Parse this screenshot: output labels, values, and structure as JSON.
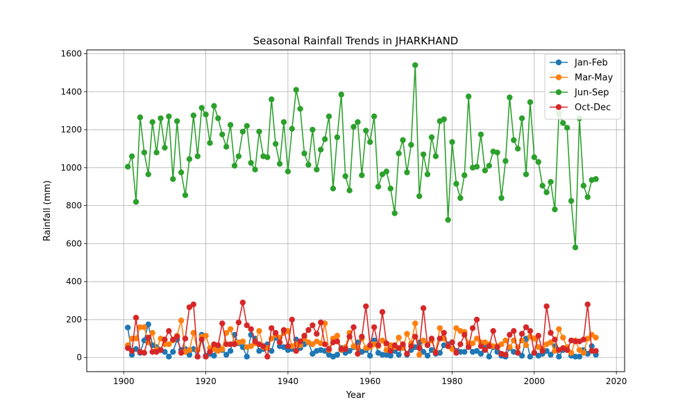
{
  "chart_data": {
    "type": "line",
    "title": "Seasonal Rainfall Trends in JHARKHAND",
    "xlabel": "Year",
    "ylabel": "Rainfall (mm)",
    "xlim": [
      1891,
      2022
    ],
    "ylim": [
      -74,
      1620
    ],
    "xticks": [
      1900,
      1920,
      1940,
      1960,
      1980,
      2000,
      2020
    ],
    "yticks": [
      0,
      200,
      400,
      600,
      800,
      1000,
      1200,
      1400,
      1600
    ],
    "grid": true,
    "legend_position": "top-right",
    "x": [
      1901,
      1902,
      1903,
      1904,
      1905,
      1906,
      1907,
      1908,
      1909,
      1910,
      1911,
      1912,
      1913,
      1914,
      1915,
      1916,
      1917,
      1918,
      1919,
      1920,
      1921,
      1922,
      1923,
      1924,
      1925,
      1926,
      1927,
      1928,
      1929,
      1930,
      1931,
      1932,
      1933,
      1934,
      1935,
      1936,
      1937,
      1938,
      1939,
      1940,
      1941,
      1942,
      1943,
      1944,
      1945,
      1946,
      1947,
      1948,
      1949,
      1950,
      1951,
      1952,
      1953,
      1954,
      1955,
      1956,
      1957,
      1958,
      1959,
      1960,
      1961,
      1962,
      1963,
      1964,
      1965,
      1966,
      1967,
      1968,
      1969,
      1970,
      1971,
      1972,
      1973,
      1974,
      1975,
      1976,
      1977,
      1978,
      1979,
      1980,
      1981,
      1982,
      1983,
      1984,
      1985,
      1986,
      1987,
      1988,
      1989,
      1990,
      1991,
      1992,
      1993,
      1994,
      1995,
      1996,
      1997,
      1998,
      1999,
      2000,
      2001,
      2002,
      2003,
      2004,
      2005,
      2006,
      2007,
      2008,
      2009,
      2010,
      2011,
      2012,
      2013,
      2014,
      2015
    ],
    "series": [
      {
        "name": "Jan-Feb",
        "color": "#1f77b4",
        "values": [
          158,
          15,
          45,
          25,
          90,
          175,
          65,
          55,
          40,
          30,
          5,
          30,
          95,
          40,
          45,
          15,
          45,
          5,
          120,
          10,
          20,
          10,
          60,
          40,
          15,
          35,
          120,
          75,
          55,
          5,
          120,
          100,
          35,
          45,
          70,
          35,
          105,
          60,
          55,
          40,
          45,
          95,
          50,
          70,
          80,
          20,
          35,
          40,
          35,
          15,
          5,
          15,
          50,
          25,
          35,
          55,
          80,
          30,
          40,
          10,
          90,
          25,
          15,
          15,
          10,
          35,
          15,
          60,
          15,
          40,
          55,
          80,
          30,
          10,
          40,
          20,
          25,
          65,
          70,
          80,
          35,
          30,
          30,
          60,
          30,
          35,
          20,
          70,
          5,
          55,
          30,
          10,
          5,
          50,
          30,
          25,
          10,
          100,
          5,
          25,
          10,
          20,
          35,
          15,
          60,
          5,
          40,
          40,
          10,
          5,
          5,
          40,
          20,
          60,
          15
        ]
      },
      {
        "name": "Mar-May",
        "color": "#ff7f0e",
        "values": [
          65,
          100,
          100,
          160,
          160,
          80,
          130,
          40,
          100,
          70,
          70,
          90,
          115,
          195,
          30,
          40,
          130,
          40,
          110,
          115,
          50,
          45,
          35,
          45,
          130,
          150,
          75,
          80,
          85,
          55,
          60,
          75,
          140,
          55,
          50,
          100,
          120,
          105,
          130,
          140,
          60,
          70,
          65,
          100,
          80,
          70,
          85,
          75,
          180,
          40,
          100,
          115,
          40,
          55,
          130,
          60,
          50,
          100,
          50,
          55,
          70,
          60,
          90,
          40,
          65,
          55,
          105,
          50,
          125,
          75,
          180,
          15,
          90,
          70,
          90,
          30,
          155,
          100,
          60,
          45,
          155,
          140,
          135,
          75,
          75,
          100,
          80,
          80,
          70,
          60,
          60,
          70,
          90,
          55,
          90,
          55,
          90,
          65,
          110,
          100,
          55,
          45,
          70,
          80,
          35,
          150,
          105,
          55,
          25,
          90,
          40,
          25,
          100,
          120,
          105
        ]
      },
      {
        "name": "Jun-Sep",
        "color": "#2ca02c",
        "values": [
          1005,
          1060,
          820,
          1265,
          1080,
          965,
          1240,
          1080,
          1260,
          1105,
          1270,
          940,
          1245,
          975,
          855,
          1045,
          1275,
          1060,
          1315,
          1280,
          1130,
          1325,
          1260,
          1175,
          1110,
          1225,
          1010,
          1060,
          1190,
          1220,
          1025,
          990,
          1190,
          1060,
          1055,
          1360,
          1125,
          1020,
          1240,
          980,
          1205,
          1410,
          1310,
          1075,
          1015,
          1200,
          990,
          1095,
          1150,
          1270,
          890,
          1160,
          1385,
          955,
          880,
          1215,
          1240,
          960,
          1195,
          1135,
          1270,
          900,
          965,
          980,
          890,
          760,
          1075,
          1145,
          975,
          1120,
          1540,
          850,
          1070,
          965,
          1160,
          1060,
          1245,
          1255,
          725,
          1135,
          915,
          840,
          960,
          1375,
          1000,
          1005,
          1175,
          985,
          1010,
          1085,
          1080,
          840,
          1035,
          1370,
          1145,
          1100,
          1260,
          965,
          1345,
          1055,
          1030,
          905,
          870,
          925,
          780,
          1285,
          1235,
          1210,
          825,
          580,
          1260,
          905,
          845,
          935,
          940
        ]
      },
      {
        "name": "Oct-Dec",
        "color": "#d62728",
        "values": [
          50,
          35,
          210,
          30,
          25,
          105,
          30,
          30,
          40,
          95,
          140,
          95,
          110,
          25,
          100,
          265,
          280,
          5,
          95,
          5,
          30,
          70,
          65,
          180,
          70,
          70,
          70,
          185,
          290,
          170,
          150,
          85,
          70,
          60,
          5,
          155,
          130,
          80,
          145,
          60,
          200,
          35,
          85,
          115,
          145,
          170,
          125,
          185,
          70,
          45,
          80,
          85,
          45,
          45,
          110,
          160,
          20,
          110,
          270,
          65,
          160,
          65,
          240,
          75,
          35,
          65,
          50,
          70,
          20,
          60,
          110,
          50,
          260,
          65,
          100,
          25,
          100,
          130,
          60,
          80,
          25,
          70,
          120,
          55,
          155,
          200,
          60,
          40,
          60,
          140,
          55,
          20,
          15,
          120,
          140,
          25,
          125,
          160,
          140,
          25,
          115,
          35,
          270,
          130,
          95,
          40,
          50,
          40,
          90,
          85,
          85,
          95,
          280,
          35,
          35
        ]
      }
    ]
  }
}
